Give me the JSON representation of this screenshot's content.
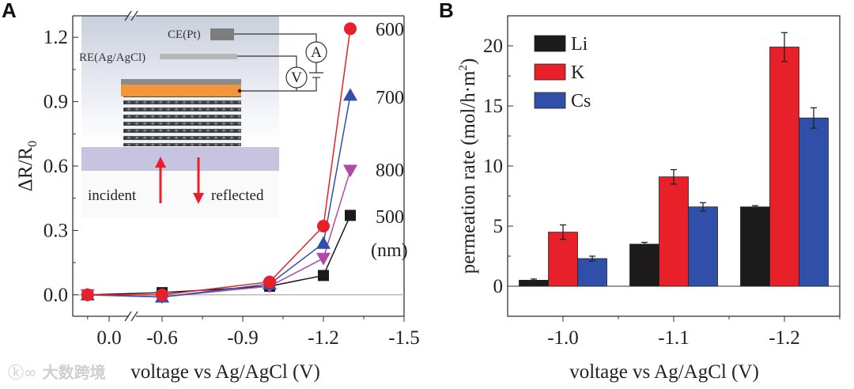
{
  "watermark": "大数跨境",
  "chart_data": [
    {
      "panel": "A",
      "type": "line",
      "xlabel": "voltage vs Ag/AgCl (V)",
      "ylabel": "ΔR/R0",
      "ylabel_main": "ΔR/R",
      "ylabel_sub": "0",
      "xlim": [
        0.15,
        -1.5
      ],
      "x_break": [
        -0.05,
        -0.45
      ],
      "ylim": [
        -0.1,
        1.3
      ],
      "x_ticks": [
        0.0,
        -0.6,
        -0.9,
        -1.2,
        -1.5
      ],
      "x_tick_labels": [
        "0.0",
        "-0.6",
        "-0.9",
        "-1.2",
        "-1.5"
      ],
      "y_ticks": [
        0.0,
        0.3,
        0.6,
        0.9,
        1.2
      ],
      "y_tick_labels": [
        "0.0",
        "0.3",
        "0.6",
        "0.9",
        "1.2"
      ],
      "x": [
        0.08,
        -0.6,
        -1.0,
        -1.2,
        -1.3
      ],
      "series": [
        {
          "name": "600",
          "color": "#e8202a",
          "marker": "circle",
          "values": [
            0.0,
            0.0,
            0.06,
            0.32,
            1.24
          ]
        },
        {
          "name": "700",
          "color": "#2f4fa8",
          "marker": "triangle-up",
          "values": [
            0.0,
            -0.01,
            0.05,
            0.24,
            0.93
          ]
        },
        {
          "name": "800",
          "color": "#b04aa8",
          "marker": "triangle-down",
          "values": [
            0.0,
            -0.01,
            0.04,
            0.17,
            0.58
          ]
        },
        {
          "name": "500",
          "color": "#1a1a1a",
          "marker": "square",
          "values": [
            0.0,
            0.01,
            0.04,
            0.09,
            0.37
          ]
        }
      ],
      "unit_label": "(nm)",
      "inset": {
        "ce_label": "CE(Pt)",
        "re_label": "RE(Ag/AgCl)",
        "ammeter": "A",
        "voltmeter": "V",
        "incident": "incident",
        "reflected": "reflected"
      }
    },
    {
      "panel": "B",
      "type": "bar",
      "xlabel": "voltage vs Ag/AgCl (V)",
      "ylabel": "permeation rate (mol/h·m²)",
      "ylabel_main": "permeation rate (mol/h·m",
      "ylabel_sup": "2",
      "ylabel_end": ")",
      "categories": [
        "-1.0",
        "-1.1",
        "-1.2"
      ],
      "ylim": [
        -2.5,
        22.5
      ],
      "y_ticks": [
        0,
        5,
        10,
        15,
        20
      ],
      "y_tick_labels": [
        "0",
        "5",
        "10",
        "15",
        "20"
      ],
      "legend_position": "top-left",
      "series": [
        {
          "name": "Li",
          "color": "#1c1a1b",
          "values": [
            0.5,
            3.5,
            6.6
          ],
          "errors": [
            0.1,
            0.15,
            0.1
          ]
        },
        {
          "name": "K",
          "color": "#e8202a",
          "values": [
            4.5,
            9.1,
            19.9
          ],
          "errors": [
            0.6,
            0.6,
            1.2
          ]
        },
        {
          "name": "Cs",
          "color": "#2f4fa8",
          "values": [
            2.3,
            6.6,
            14.0
          ],
          "errors": [
            0.2,
            0.35,
            0.85
          ]
        }
      ]
    }
  ]
}
